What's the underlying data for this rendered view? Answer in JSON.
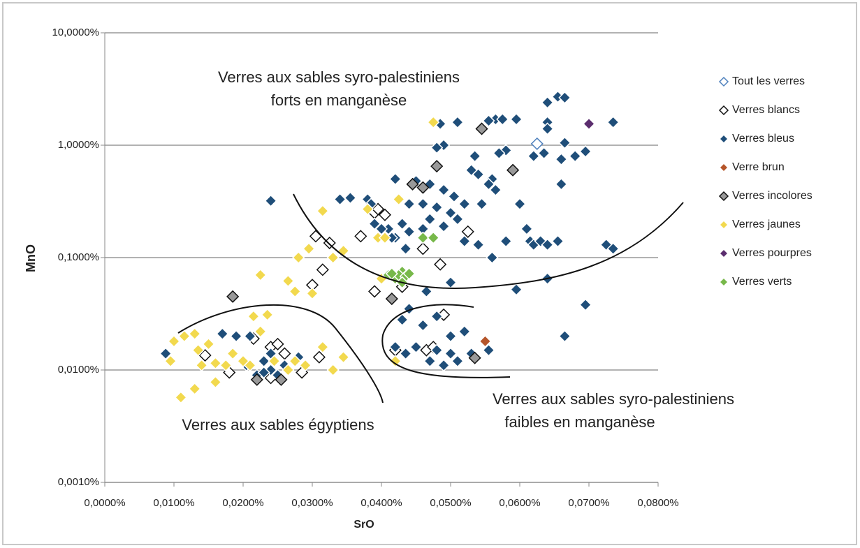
{
  "chart_data": {
    "type": "scatter",
    "xlabel": "SrO",
    "ylabel": "MnO",
    "log_y": true,
    "grid": true,
    "legend": "right",
    "xlim": [
      0,
      0.08
    ],
    "ylim": [
      0.001,
      10
    ],
    "xticks": [
      {
        "value": 0,
        "label": "0,0000%"
      },
      {
        "value": 0.01,
        "label": "0,0100%"
      },
      {
        "value": 0.02,
        "label": "0,0200%"
      },
      {
        "value": 0.03,
        "label": "0,0300%"
      },
      {
        "value": 0.04,
        "label": "0,0400%"
      },
      {
        "value": 0.05,
        "label": "0,0500%"
      },
      {
        "value": 0.06,
        "label": "0,0600%"
      },
      {
        "value": 0.07,
        "label": "0,0700%"
      },
      {
        "value": 0.08,
        "label": "0,0800%"
      }
    ],
    "yticks": [
      {
        "value": 0.001,
        "label": "0,0010%"
      },
      {
        "value": 0.01,
        "label": "0,0100%"
      },
      {
        "value": 0.1,
        "label": "0,1000%"
      },
      {
        "value": 1,
        "label": "1,0000%"
      },
      {
        "value": 10,
        "label": "10,0000%"
      }
    ],
    "annotations": [
      "Verres aux sables syro-palestiniens",
      "forts en manganèse",
      "Verres aux sables égyptiens",
      "Verres aux sables syro-palestiniens",
      "faibles en manganèse"
    ],
    "series": [
      {
        "name": "Tout les verres",
        "color": "#ffffff",
        "edge": "#4f81bd",
        "x": [
          0.0625
        ],
        "values": [
          1.03
        ]
      },
      {
        "name": "Verres blancs",
        "color": "#ffffff",
        "edge": "#111111",
        "x": [
          0.0145,
          0.018,
          0.0215,
          0.024,
          0.025,
          0.026,
          0.0285,
          0.031,
          0.03,
          0.0315,
          0.0305,
          0.0325,
          0.037,
          0.039,
          0.0395,
          0.0405,
          0.039,
          0.043,
          0.046,
          0.0485,
          0.049,
          0.042,
          0.0465,
          0.0475,
          0.0525,
          0.024
        ],
        "values": [
          0.0135,
          0.0095,
          0.019,
          0.016,
          0.017,
          0.014,
          0.0095,
          0.013,
          0.057,
          0.078,
          0.155,
          0.135,
          0.155,
          0.25,
          0.27,
          0.24,
          0.05,
          0.055,
          0.12,
          0.087,
          0.031,
          0.015,
          0.015,
          0.016,
          0.17,
          0.0085
        ]
      },
      {
        "name": "Verres bleus",
        "color": "#1f4e79",
        "edge": "#ffffff",
        "x": [
          0.064,
          0.0655,
          0.0665,
          0.0735,
          0.0565,
          0.0555,
          0.0575,
          0.0595,
          0.051,
          0.0485,
          0.064,
          0.0665,
          0.062,
          0.0635,
          0.066,
          0.068,
          0.0695,
          0.064,
          0.049,
          0.048,
          0.058,
          0.057,
          0.0535,
          0.054,
          0.053,
          0.056,
          0.0555,
          0.0565,
          0.0545,
          0.052,
          0.0505,
          0.049,
          0.047,
          0.045,
          0.042,
          0.044,
          0.046,
          0.048,
          0.05,
          0.051,
          0.047,
          0.043,
          0.041,
          0.042,
          0.044,
          0.046,
          0.049,
          0.052,
          0.054,
          0.056,
          0.058,
          0.06,
          0.061,
          0.0615,
          0.062,
          0.063,
          0.064,
          0.0655,
          0.0725,
          0.0735,
          0.064,
          0.0595,
          0.066,
          0.038,
          0.0355,
          0.034,
          0.024,
          0.0385,
          0.039,
          0.04,
          0.0415,
          0.0435,
          0.05,
          0.0465,
          0.0695,
          0.0665,
          0.044,
          0.043,
          0.046,
          0.048,
          0.05,
          0.052,
          0.045,
          0.048,
          0.05,
          0.049,
          0.051,
          0.053,
          0.0555,
          0.047,
          0.0435,
          0.042,
          0.0088,
          0.017,
          0.019,
          0.021,
          0.023,
          0.024,
          0.022,
          0.025,
          0.026,
          0.028,
          0.0205,
          0.023,
          0.024
        ],
        "values": [
          2.4,
          2.7,
          2.65,
          1.6,
          1.7,
          1.65,
          1.7,
          1.7,
          1.6,
          1.55,
          1.6,
          1.05,
          0.8,
          0.85,
          0.75,
          0.8,
          0.88,
          1.4,
          1.0,
          0.95,
          0.9,
          0.85,
          0.8,
          0.55,
          0.6,
          0.5,
          0.45,
          0.4,
          0.3,
          0.3,
          0.35,
          0.4,
          0.45,
          0.48,
          0.5,
          0.3,
          0.3,
          0.28,
          0.25,
          0.22,
          0.22,
          0.2,
          0.18,
          0.15,
          0.17,
          0.18,
          0.19,
          0.14,
          0.13,
          0.1,
          0.14,
          0.3,
          0.18,
          0.14,
          0.13,
          0.14,
          0.13,
          0.14,
          0.13,
          0.12,
          0.065,
          0.052,
          0.45,
          0.33,
          0.34,
          0.33,
          0.32,
          0.3,
          0.2,
          0.18,
          0.15,
          0.12,
          0.06,
          0.05,
          0.038,
          0.02,
          0.035,
          0.028,
          0.025,
          0.03,
          0.02,
          0.022,
          0.016,
          0.015,
          0.014,
          0.011,
          0.012,
          0.014,
          0.015,
          0.012,
          0.014,
          0.016,
          0.014,
          0.021,
          0.02,
          0.02,
          0.012,
          0.01,
          0.009,
          0.009,
          0.011,
          0.013,
          0.011,
          0.0095,
          0.014
        ]
      },
      {
        "name": "Verre brun",
        "color": "#b5552a",
        "edge": "#ffffff",
        "x": [
          0.055
        ],
        "values": [
          0.018
        ]
      },
      {
        "name": "Verres incolores",
        "color": "#999999",
        "edge": "#111111",
        "x": [
          0.048,
          0.0545,
          0.059,
          0.0445,
          0.046,
          0.0535,
          0.0255,
          0.0185,
          0.0415,
          0.022
        ],
        "values": [
          0.65,
          1.4,
          0.6,
          0.45,
          0.42,
          0.0128,
          0.0082,
          0.045,
          0.043,
          0.0082
        ]
      },
      {
        "name": "Verres jaunes",
        "color": "#f2d94e",
        "edge": "#ffffff",
        "x": [
          0.01,
          0.0095,
          0.0115,
          0.011,
          0.013,
          0.013,
          0.0135,
          0.014,
          0.015,
          0.016,
          0.016,
          0.0175,
          0.0185,
          0.02,
          0.021,
          0.0215,
          0.0225,
          0.0235,
          0.0245,
          0.0265,
          0.0275,
          0.029,
          0.0315,
          0.033,
          0.0345,
          0.0225,
          0.0265,
          0.0275,
          0.03,
          0.028,
          0.0295,
          0.033,
          0.0345,
          0.0315,
          0.038,
          0.0395,
          0.0405,
          0.0425,
          0.0475,
          0.04,
          0.042
        ],
        "values": [
          0.018,
          0.012,
          0.02,
          0.0057,
          0.0068,
          0.021,
          0.015,
          0.011,
          0.017,
          0.0115,
          0.0078,
          0.011,
          0.014,
          0.012,
          0.011,
          0.03,
          0.022,
          0.031,
          0.012,
          0.01,
          0.012,
          0.011,
          0.016,
          0.01,
          0.013,
          0.07,
          0.062,
          0.05,
          0.048,
          0.1,
          0.12,
          0.1,
          0.115,
          0.26,
          0.27,
          0.15,
          0.15,
          0.33,
          1.6,
          0.065,
          0.012
        ]
      },
      {
        "name": "Verres pourpres",
        "color": "#5b2d6e",
        "edge": "#ffffff",
        "x": [
          0.07
        ],
        "values": [
          1.55
        ]
      },
      {
        "name": "Verres verts",
        "color": "#77b84a",
        "edge": "#ffffff",
        "x": [
          0.041,
          0.042,
          0.043,
          0.0425,
          0.0435,
          0.0415,
          0.044,
          0.046,
          0.0475,
          0.043
        ],
        "values": [
          0.07,
          0.065,
          0.075,
          0.07,
          0.068,
          0.072,
          0.072,
          0.15,
          0.15,
          0.06
        ]
      }
    ]
  }
}
